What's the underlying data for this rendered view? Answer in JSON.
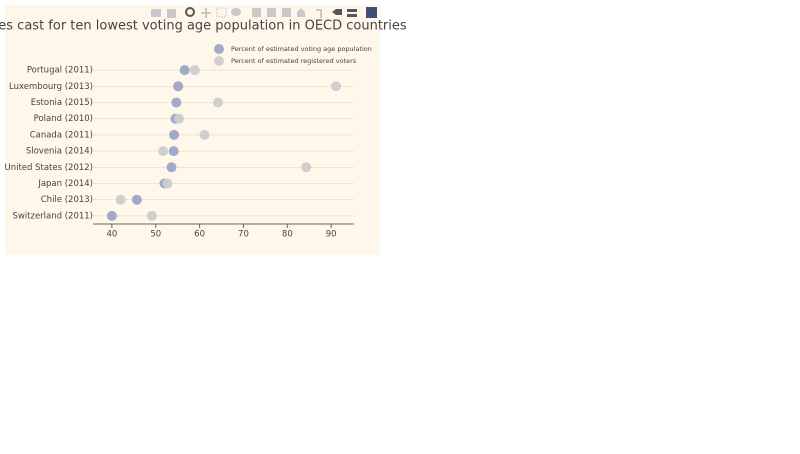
{
  "chart_data": {
    "type": "dot",
    "title": "Votes cast for ten lowest voting age population in OECD countries",
    "categories": [
      "Switzerland (2011)",
      "Chile (2013)",
      "Japan (2014)",
      "United States (2012)",
      "Slovenia (2014)",
      "Canada (2011)",
      "Poland (2010)",
      "Estonia (2015)",
      "Luxembourg (2013)",
      "Portugal (2011)"
    ],
    "series": [
      {
        "name": "Percent of estimated voting age population",
        "color": "rgba(156,165,196,0.95)",
        "values": [
          40,
          45.7,
          52,
          53.6,
          54.1,
          54.2,
          54.5,
          54.7,
          55.1,
          56.6
        ]
      },
      {
        "name": "Percent of estimated registered voters",
        "color": "rgba(204,204,204,0.95)",
        "values": [
          49.1,
          42,
          52.7,
          84.3,
          51.7,
          61.1,
          55.3,
          64.2,
          91.1,
          58.9
        ]
      }
    ],
    "xlim": [
      35.7,
      95.2
    ],
    "xticks": [
      40,
      50,
      60,
      70,
      80,
      90
    ],
    "grid": true
  }
}
